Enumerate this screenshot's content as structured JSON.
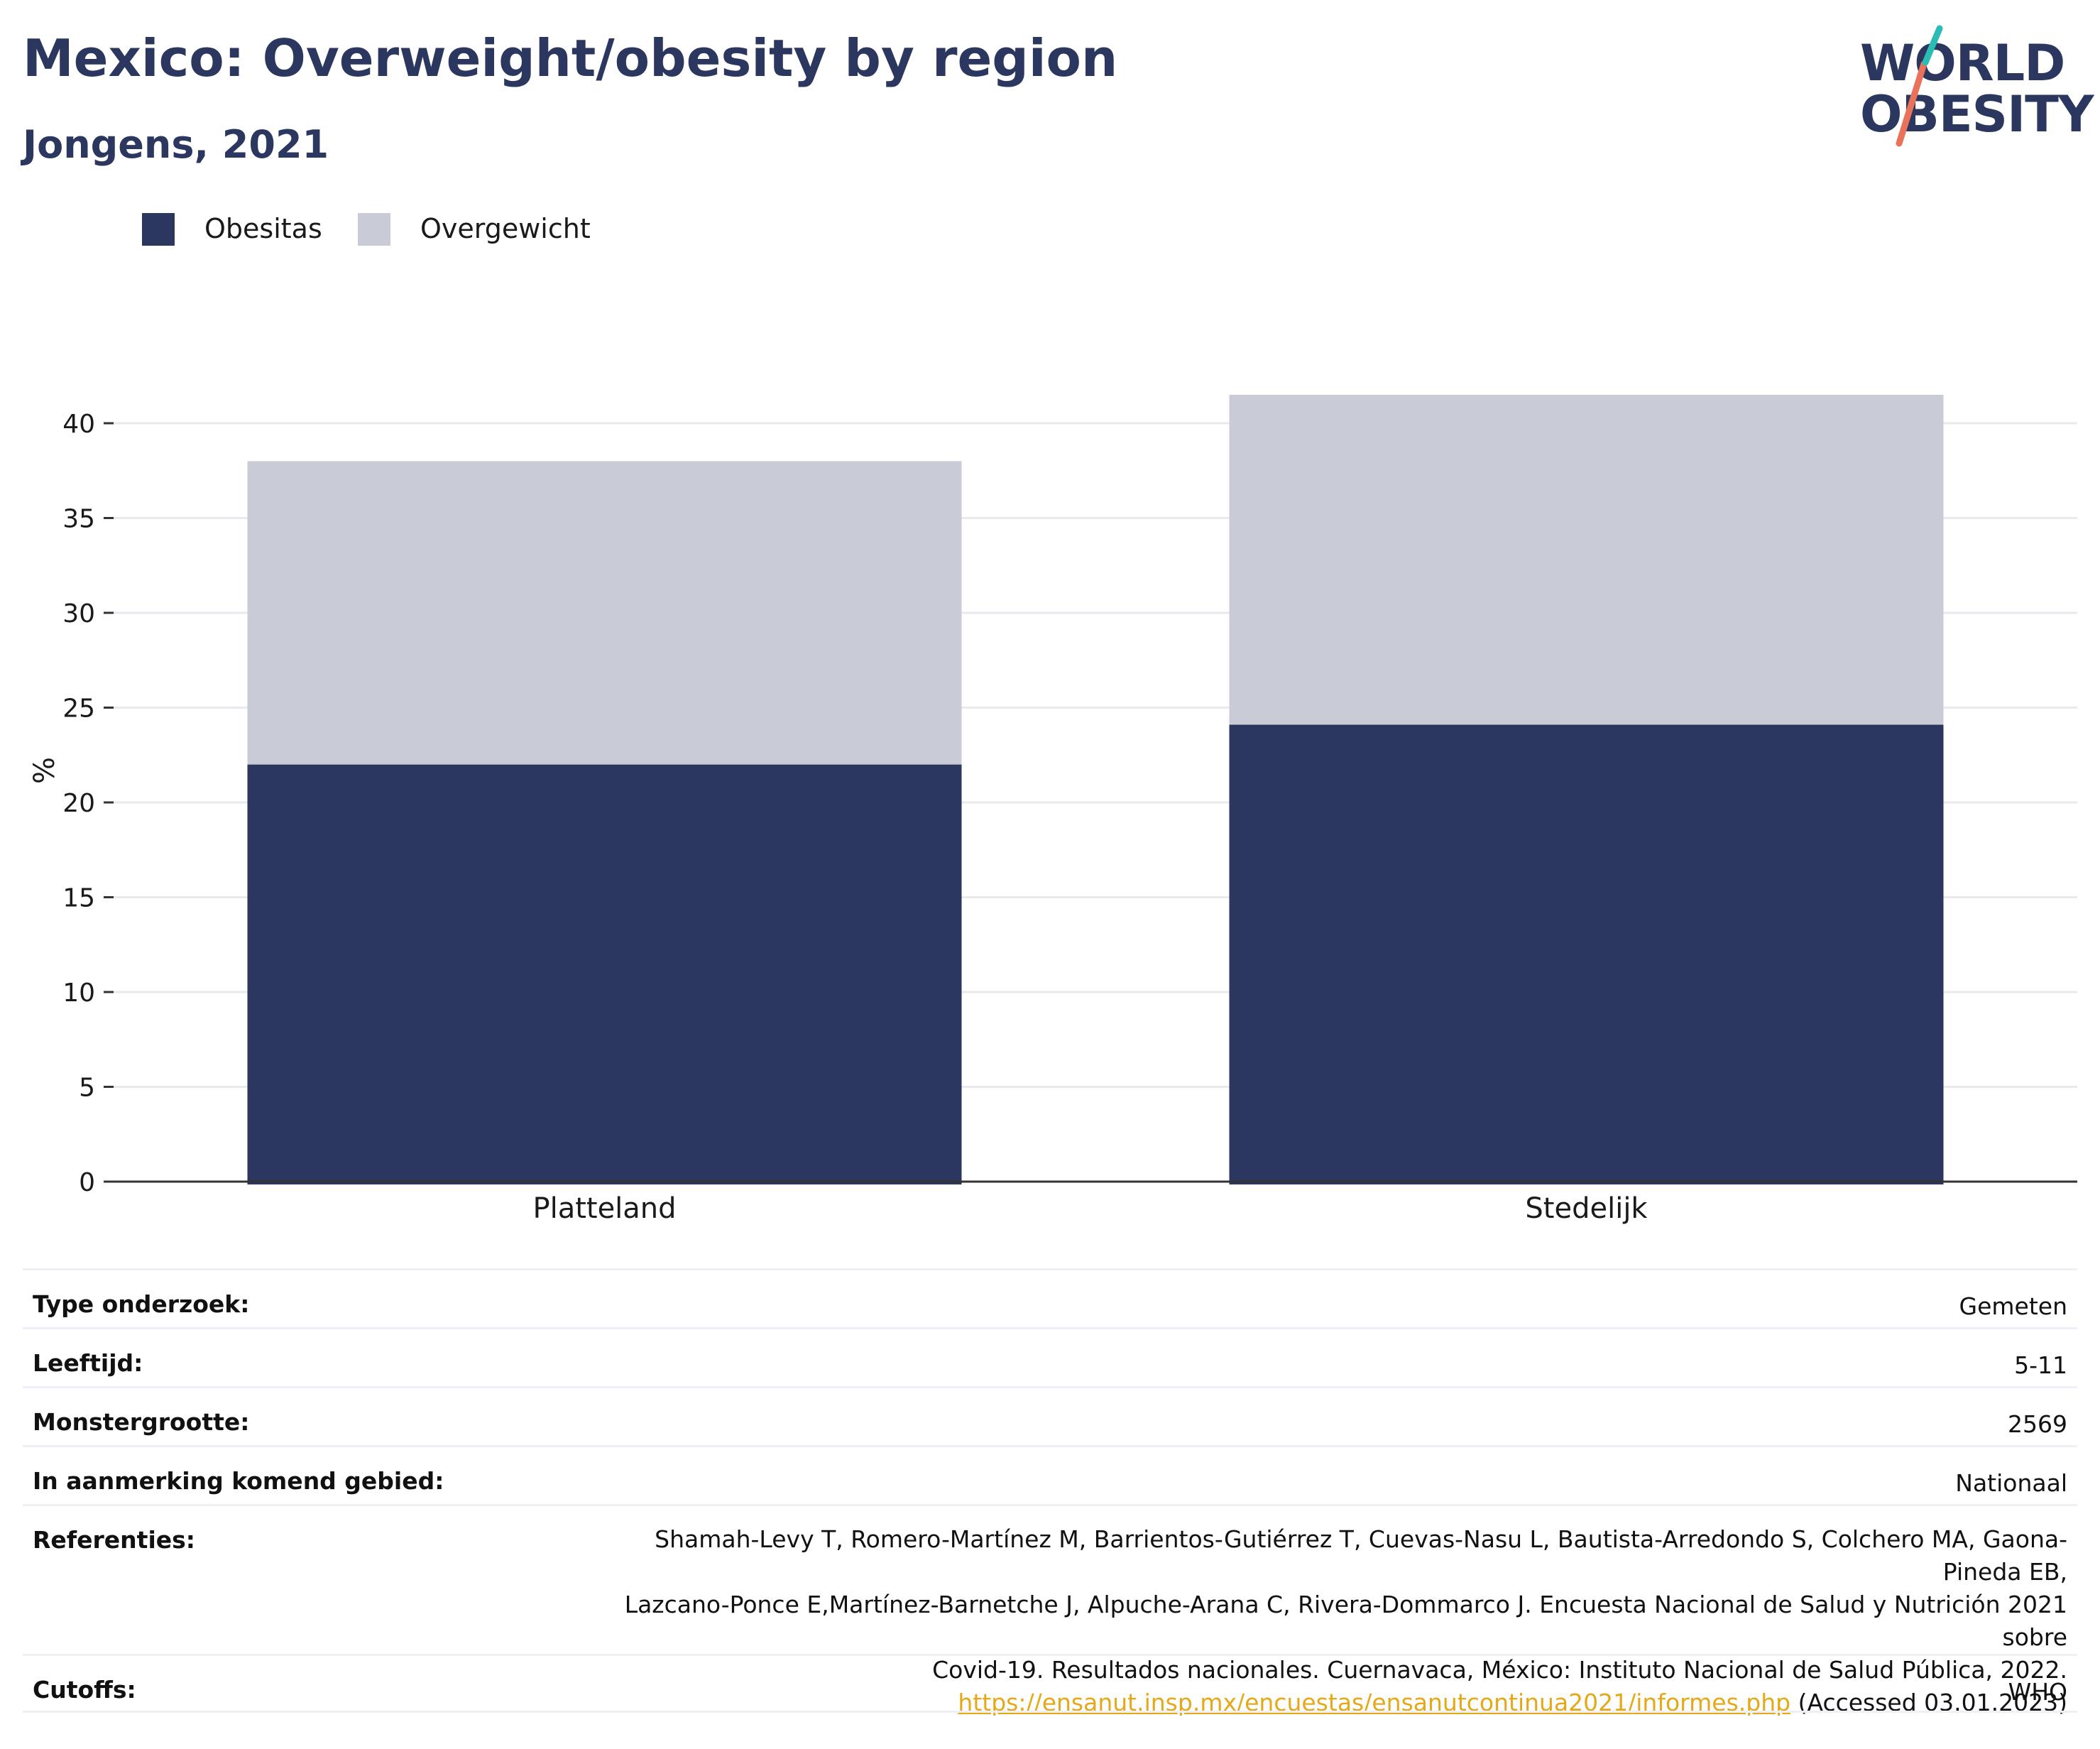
{
  "header": {
    "title": "Mexico: Overweight/obesity by region",
    "subtitle": "Jongens, 2021"
  },
  "logo": {
    "line1": "WORLD",
    "line2": "OBESITY",
    "accent": "#e8735a",
    "accent2": "#2bbcb3",
    "text_color": "#2b375f"
  },
  "chart_data": {
    "type": "bar",
    "stacked": true,
    "categories": [
      "Platteland",
      "Stedelijk"
    ],
    "series": [
      {
        "name": "Obesitas",
        "values": [
          22.0,
          24.1
        ],
        "color": "#2b375f"
      },
      {
        "name": "Overgewicht",
        "values": [
          16.0,
          17.4
        ],
        "color": "#c9ccd7"
      }
    ],
    "ylabel": "%",
    "xlabel": "",
    "ylim": [
      0,
      42
    ],
    "yticks": [
      0,
      5,
      10,
      15,
      20,
      25,
      30,
      35,
      40
    ],
    "grid": true,
    "legend_position": "top-left"
  },
  "meta": {
    "survey_type": {
      "label": "Type onderzoek:",
      "value": "Gemeten"
    },
    "age": {
      "label": "Leeftijd:",
      "value": "5-11"
    },
    "sample_size": {
      "label": "Monstergrootte:",
      "value": "2569"
    },
    "area": {
      "label": "In aanmerking komend gebied:",
      "value": "Nationaal"
    },
    "references": {
      "label": "Referenties:",
      "line1": "Shamah-Levy T, Romero-Martínez M, Barrientos-Gutiérrez T, Cuevas-Nasu L, Bautista-Arredondo S, Colchero MA, Gaona-Pineda EB,",
      "line2": "Lazcano-Ponce E,Martínez-Barnetche J, Alpuche-Arana C, Rivera-Dommarco J. Encuesta Nacional de Salud y Nutrición 2021 sobre",
      "line3": "Covid-19. Resultados nacionales. Cuernavaca, México: Instituto Nacional de Salud Pública, 2022.",
      "link": "https://ensanut.insp.mx/encuestas/ensanutcontinua2021/informes.php",
      "accessed": " (Accessed 03.01.2023)"
    },
    "cutoffs": {
      "label": "Cutoffs:",
      "value": "WHO"
    }
  }
}
